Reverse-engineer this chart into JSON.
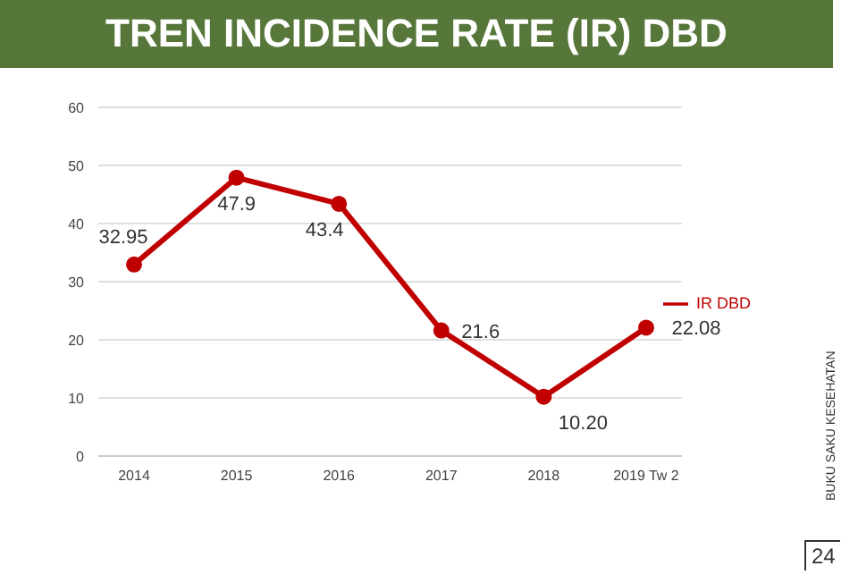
{
  "chart_data": {
    "type": "line",
    "title": "TREN INCIDENCE RATE (IR) DBD",
    "categories": [
      "2014",
      "2015",
      "2016",
      "2017",
      "2018",
      "2019 Tw 2"
    ],
    "series": [
      {
        "name": "IR DBD",
        "color": "#c00000",
        "values": [
          32.95,
          47.9,
          43.4,
          21.6,
          10.2,
          22.08
        ],
        "value_labels": [
          "32.95",
          "47.9",
          "43.4",
          "21.6",
          "10.20",
          "22.08"
        ]
      }
    ],
    "ylim": [
      0,
      60
    ],
    "yticks": [
      0,
      10,
      20,
      30,
      40,
      50,
      60
    ],
    "grid": "y",
    "legend": "right",
    "marker": "circle",
    "line_style": "solid",
    "annotations": [
      "BUKU SAKU KESEHATAN",
      "24"
    ]
  }
}
